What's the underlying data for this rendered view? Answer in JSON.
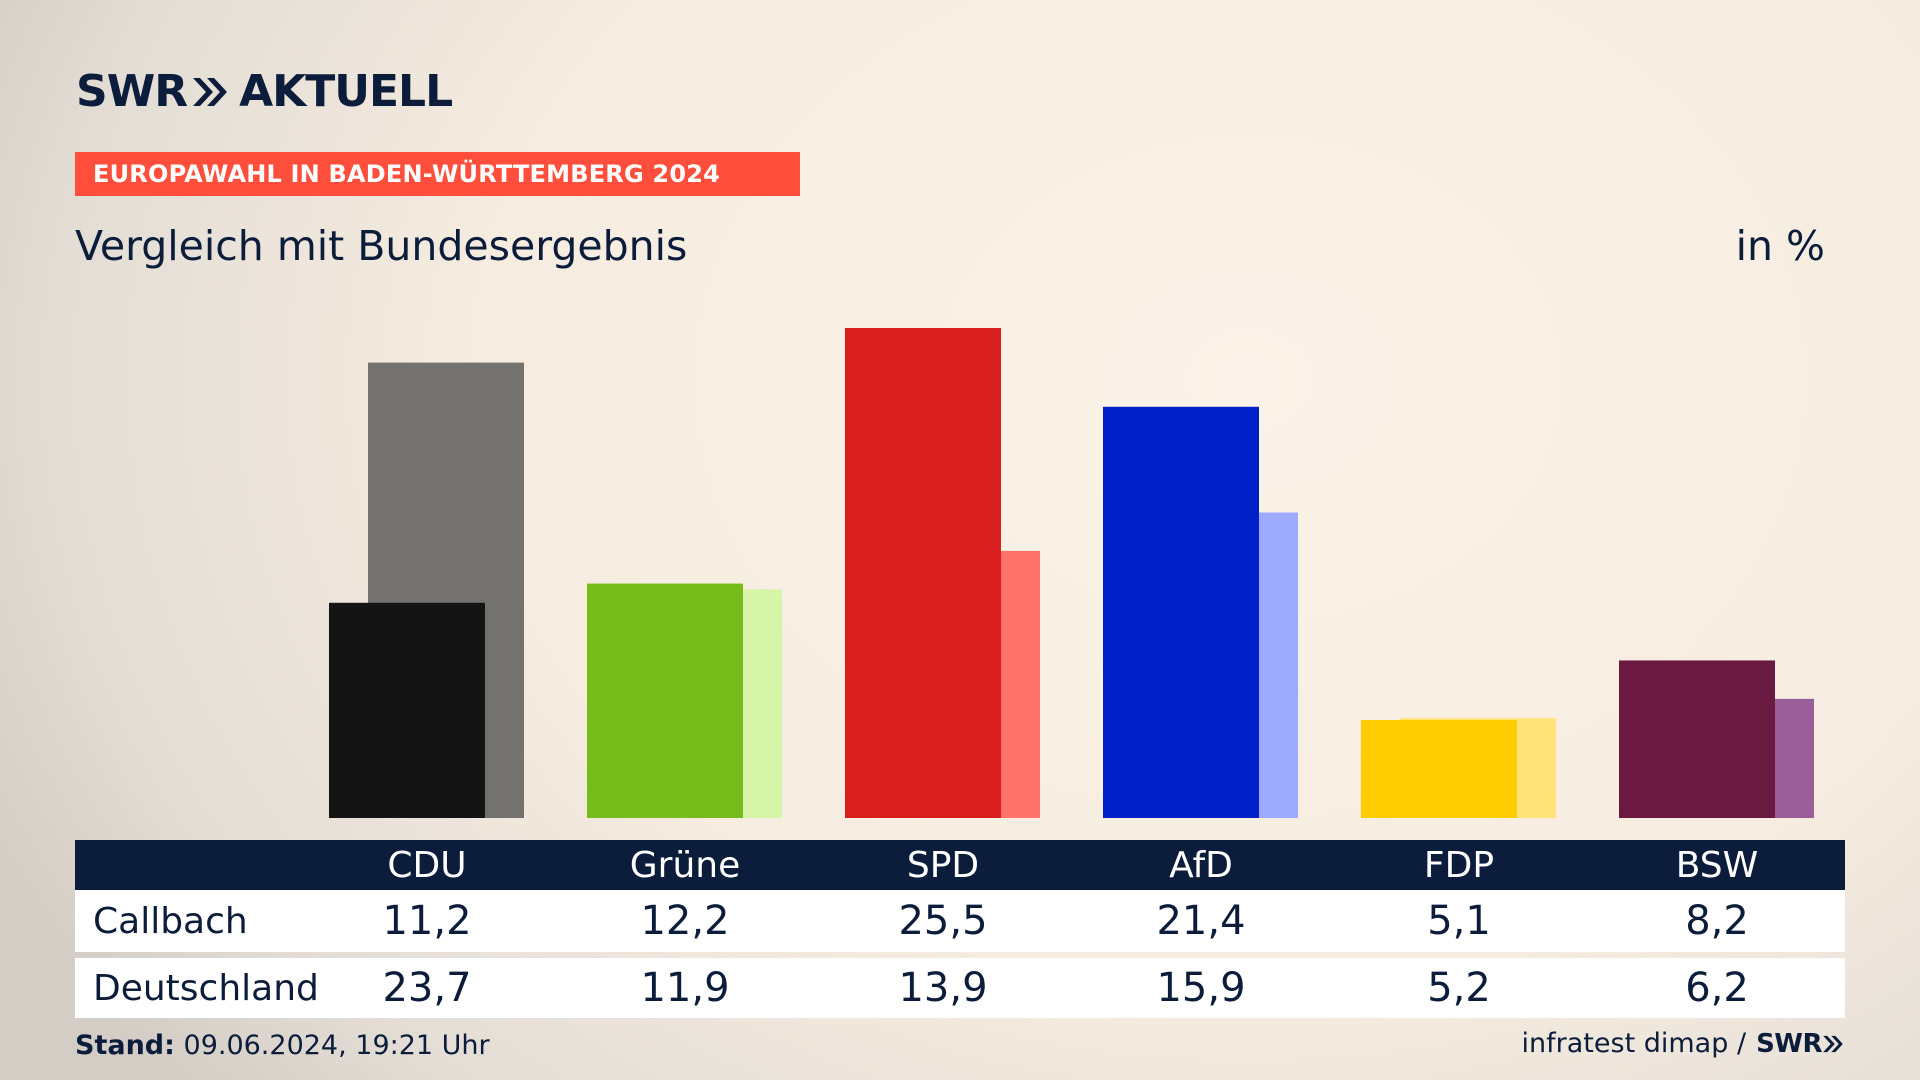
{
  "brand": {
    "logo_left": "SWR",
    "logo_right": "AKTUELL",
    "logo_small": "SWR"
  },
  "banner": "EUROPAWAHL IN BADEN-WÜRTTEMBERG 2024",
  "subtitle": "Vergleich mit Bundesergebnis",
  "unit": "in %",
  "table": {
    "rows": [
      {
        "label": "Callbach",
        "values": [
          "11,2",
          "12,2",
          "25,5",
          "21,4",
          "5,1",
          "8,2"
        ]
      },
      {
        "label": "Deutschland",
        "values": [
          "23,7",
          "11,9",
          "13,9",
          "15,9",
          "5,2",
          "6,2"
        ]
      }
    ]
  },
  "footer": {
    "stand_label": "Stand:",
    "stand_value": "09.06.2024, 19:21 Uhr",
    "source": "infratest dimap /"
  },
  "colors": {
    "navy": "#0c1d3c",
    "banner": "#ff4f3c"
  },
  "chart_data": {
    "type": "bar",
    "categories": [
      "CDU",
      "Grüne",
      "SPD",
      "AfD",
      "FDP",
      "BSW"
    ],
    "series": [
      {
        "name": "Callbach",
        "values": [
          11.2,
          12.2,
          25.5,
          21.4,
          5.1,
          8.2
        ]
      },
      {
        "name": "Deutschland",
        "values": [
          23.7,
          11.9,
          13.9,
          15.9,
          5.2,
          6.2
        ]
      }
    ],
    "colors": {
      "Callbach": [
        "#141414",
        "#78bc1c",
        "#d81e1f",
        "#0020c8",
        "#ffcc00",
        "#6a1a40"
      ],
      "Deutschland": [
        "#74726f",
        "#d7f5a9",
        "#ff736c",
        "#9eaaff",
        "#ffe27a",
        "#9a5e9a"
      ]
    },
    "ylim": [
      0,
      25.5
    ],
    "grid": false,
    "legend": "none"
  }
}
